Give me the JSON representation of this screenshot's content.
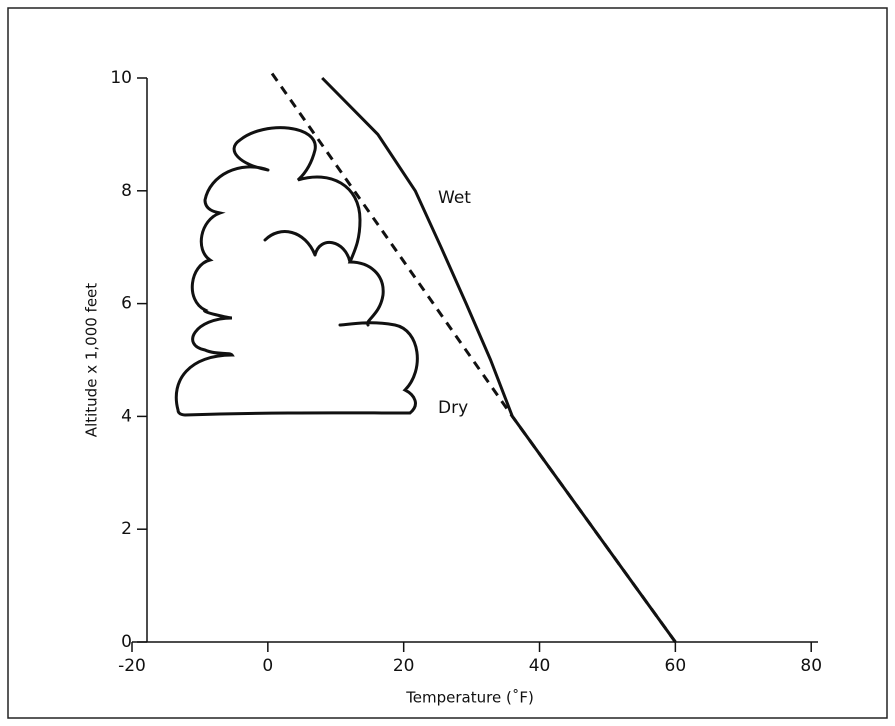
{
  "chart_data": {
    "type": "line",
    "xlabel": "Temperature (˚F)",
    "ylabel": "Altitude x 1,000 feet",
    "xlim": [
      -20,
      81
    ],
    "ylim": [
      0,
      10
    ],
    "xticks": [
      -20,
      0,
      20,
      40,
      60,
      80
    ],
    "yticks": [
      0,
      2,
      4,
      6,
      8,
      10
    ],
    "series": [
      {
        "name": "Wet",
        "color": "#111111",
        "style": "solid",
        "x": [
          60,
          36,
          32.8,
          29.2,
          25.5,
          21.7,
          16.2,
          8
        ],
        "values": [
          0,
          4,
          5,
          6,
          7,
          8,
          9,
          10
        ]
      },
      {
        "name": "Dry",
        "color": "#111111",
        "style": "dashed",
        "x": [
          60,
          36,
          0.5
        ],
        "values": [
          0,
          4,
          10.1
        ]
      }
    ]
  }
}
